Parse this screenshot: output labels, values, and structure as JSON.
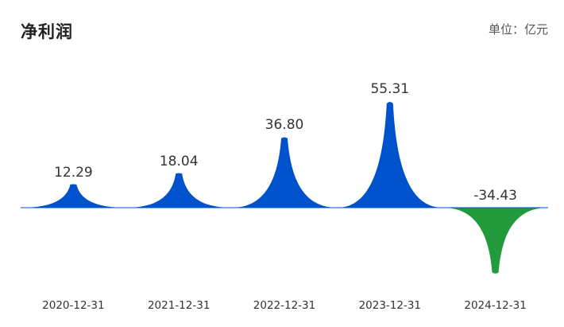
{
  "header": {
    "title": "净利润",
    "unit": "单位：亿元"
  },
  "chart_data": {
    "type": "area",
    "title": "净利润",
    "unit": "单位：亿元",
    "categories": [
      "2020-12-31",
      "2021-12-31",
      "2022-12-31",
      "2023-12-31",
      "2024-12-31"
    ],
    "values": [
      12.29,
      18.04,
      36.8,
      55.31,
      -34.43
    ],
    "value_labels": [
      "12.29",
      "18.04",
      "36.80",
      "55.31",
      "-34.43"
    ],
    "colors": {
      "positive": "#0052cc",
      "negative": "#239a3b"
    },
    "grid": false,
    "legend": "none"
  }
}
